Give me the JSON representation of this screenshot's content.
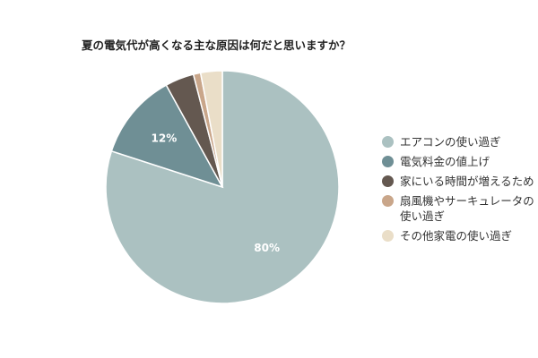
{
  "chart_data": {
    "type": "pie",
    "title": "夏の電気代が高くなる主な原因は何だと思いますか？",
    "slices": [
      {
        "name": "エアコンの使い過ぎ",
        "value": 80,
        "color": "#abc1c1",
        "data_label": "80%"
      },
      {
        "name": "電気料金の値上げ",
        "value": 12,
        "color": "#6f8f95",
        "data_label": "12%"
      },
      {
        "name": "家にいる時間が増えるため",
        "value": 4,
        "color": "#645850",
        "data_label": ""
      },
      {
        "name": "扇風機やサーキュレータの使い過ぎ",
        "value": 1,
        "color": "#c9a68a",
        "data_label": ""
      },
      {
        "name": "その他家電の使い過ぎ",
        "value": 3,
        "color": "#eadec8",
        "data_label": ""
      }
    ],
    "legend_position": "right"
  },
  "legend": [
    {
      "lines": [
        "エアコンの使い過ぎ"
      ]
    },
    {
      "lines": [
        "電気料金の値上げ"
      ]
    },
    {
      "lines": [
        "家にいる時間が増えるため"
      ]
    },
    {
      "lines": [
        "扇風機やサーキュレータの",
        "使い過ぎ"
      ]
    },
    {
      "lines": [
        "その他家電の使い過ぎ"
      ]
    }
  ]
}
